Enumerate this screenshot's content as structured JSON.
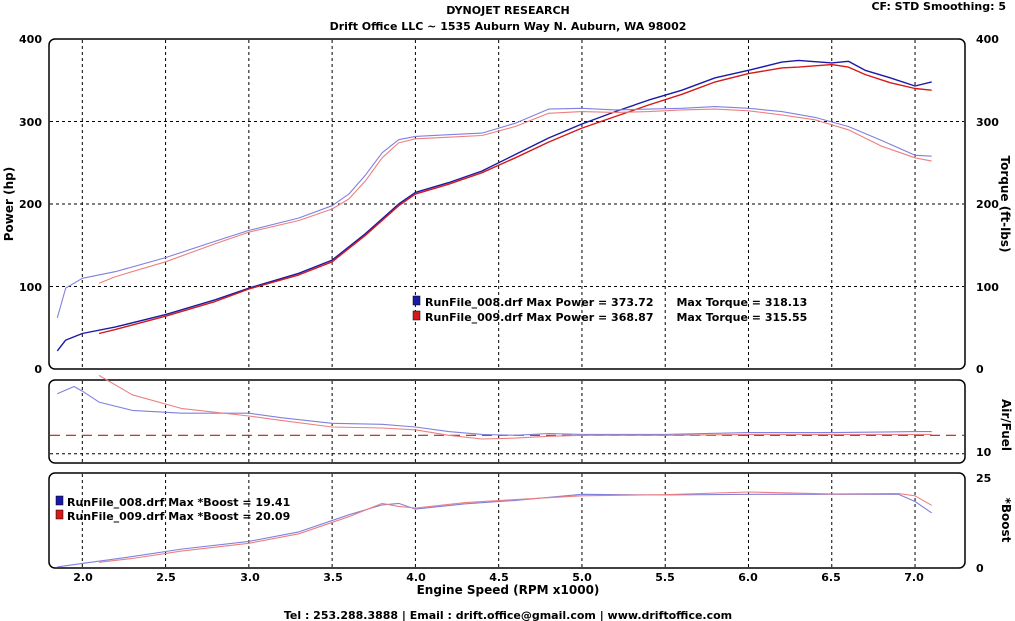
{
  "header": {
    "title": "DYNOJET RESEARCH",
    "subtitle": "Drift Office LLC ~ 1535 Auburn Way N. Auburn, WA 98002",
    "cf_text": "CF: STD  Smoothing: 5"
  },
  "footer": {
    "contact": "Tel : 253.288.3888 | Email : drift.office@gmail.com | www.driftoffice.com"
  },
  "colors": {
    "run008": "#1a1aa8",
    "run009": "#d41a1a",
    "run008_light": "#8080e0",
    "run009_light": "#ec8080"
  },
  "chart_data": [
    {
      "type": "line",
      "panel": "power-torque",
      "ylabel": "Power (hp)",
      "y2label": "Torque (ft-lbs)",
      "ylim": [
        0,
        400
      ],
      "y2lim": [
        0,
        400
      ],
      "xlim": [
        1.8,
        7.3
      ],
      "yticks": [
        "0",
        "100",
        "200",
        "300",
        "400"
      ],
      "y2ticks": [
        "0",
        "100",
        "200",
        "300",
        "400"
      ],
      "grid": true,
      "legend": [
        "RunFile_008.drf Max Power = 373.72      Max Torque = 318.13",
        "RunFile_009.drf Max Power = 368.87      Max Torque = 315.55"
      ],
      "series": [
        {
          "name": "RunFile_008.drf",
          "measure": "power",
          "x": [
            1.85,
            1.9,
            2.0,
            2.2,
            2.5,
            2.8,
            3.0,
            3.3,
            3.5,
            3.7,
            3.9,
            4.0,
            4.2,
            4.4,
            4.6,
            4.8,
            5.0,
            5.2,
            5.4,
            5.6,
            5.8,
            6.0,
            6.2,
            6.3,
            6.5,
            6.6,
            6.7,
            6.85,
            7.0,
            7.1
          ],
          "y": [
            22,
            35,
            43,
            51,
            66,
            84,
            98,
            116,
            132,
            164,
            200,
            214,
            226,
            240,
            260,
            280,
            297,
            312,
            326,
            338,
            353,
            362,
            372,
            374,
            371,
            373,
            362,
            353,
            343,
            348
          ]
        },
        {
          "name": "RunFile_009.drf",
          "measure": "power",
          "x": [
            2.1,
            2.2,
            2.5,
            2.8,
            3.0,
            3.3,
            3.5,
            3.7,
            3.9,
            4.0,
            4.2,
            4.4,
            4.6,
            4.8,
            5.0,
            5.2,
            5.4,
            5.6,
            5.8,
            6.0,
            6.2,
            6.3,
            6.5,
            6.6,
            6.7,
            6.85,
            7.0,
            7.1
          ],
          "y": [
            43,
            48,
            64,
            82,
            97,
            114,
            130,
            162,
            198,
            212,
            224,
            238,
            256,
            275,
            292,
            306,
            320,
            333,
            348,
            358,
            365,
            366,
            369,
            366,
            357,
            347,
            340,
            338
          ]
        },
        {
          "name": "RunFile_008.drf",
          "measure": "torque",
          "x": [
            1.85,
            1.9,
            2.0,
            2.2,
            2.5,
            2.8,
            3.0,
            3.3,
            3.5,
            3.6,
            3.7,
            3.8,
            3.9,
            4.0,
            4.2,
            4.4,
            4.6,
            4.8,
            5.0,
            5.2,
            5.4,
            5.6,
            5.8,
            6.0,
            6.2,
            6.4,
            6.6,
            6.8,
            7.0,
            7.1
          ],
          "y": [
            62,
            98,
            110,
            118,
            135,
            155,
            168,
            183,
            198,
            212,
            235,
            262,
            278,
            282,
            284,
            286,
            298,
            315,
            316,
            314,
            315,
            316,
            318,
            316,
            312,
            305,
            294,
            277,
            259,
            258
          ]
        },
        {
          "name": "RunFile_009.drf",
          "measure": "torque",
          "x": [
            2.1,
            2.2,
            2.5,
            2.8,
            3.0,
            3.3,
            3.5,
            3.6,
            3.7,
            3.8,
            3.9,
            4.0,
            4.2,
            4.4,
            4.6,
            4.8,
            5.0,
            5.2,
            5.4,
            5.6,
            5.8,
            6.0,
            6.2,
            6.4,
            6.6,
            6.8,
            7.0,
            7.1
          ],
          "y": [
            104,
            112,
            130,
            152,
            166,
            180,
            194,
            206,
            228,
            256,
            274,
            279,
            281,
            283,
            294,
            310,
            312,
            311,
            312,
            314,
            315,
            313,
            308,
            302,
            290,
            270,
            256,
            252
          ]
        }
      ]
    },
    {
      "type": "line",
      "panel": "air-fuel",
      "ylabel": "Air/Fuel",
      "xlim": [
        1.8,
        7.3
      ],
      "ylim": [
        9,
        18
      ],
      "y2ticks": [
        "10"
      ],
      "reference_line": 12,
      "grid": true,
      "series": [
        {
          "name": "RunFile_008.drf",
          "x": [
            1.85,
            1.9,
            1.95,
            2.0,
            2.1,
            2.3,
            2.6,
            3.0,
            3.2,
            3.5,
            3.8,
            4.0,
            4.2,
            4.4,
            4.6,
            4.8,
            5.0,
            5.5,
            6.0,
            6.5,
            7.0,
            7.1
          ],
          "y": [
            16.5,
            16.9,
            17.3,
            16.8,
            15.6,
            14.7,
            14.4,
            14.4,
            13.9,
            13.3,
            13.2,
            12.9,
            12.4,
            12.1,
            12.0,
            12.2,
            12.1,
            12.1,
            12.3,
            12.3,
            12.4,
            12.4
          ]
        },
        {
          "name": "RunFile_009.drf",
          "x": [
            2.1,
            2.3,
            2.6,
            3.0,
            3.2,
            3.5,
            3.8,
            4.0,
            4.2,
            4.4,
            4.6,
            4.8,
            5.0,
            5.5,
            6.0,
            6.5,
            7.0,
            7.1
          ],
          "y": [
            18.5,
            16.4,
            14.9,
            14.1,
            13.6,
            12.9,
            12.8,
            12.6,
            12.0,
            11.6,
            11.7,
            11.9,
            12.0,
            12.0,
            12.1,
            12.1,
            12.1,
            12.1
          ]
        }
      ]
    },
    {
      "type": "line",
      "panel": "boost",
      "ylabel": "*Boost",
      "xlabel": "Engine Speed (RPM x1000)",
      "xlim": [
        1.8,
        7.3
      ],
      "ylim": [
        0,
        25
      ],
      "xticks": [
        "2.0",
        "2.5",
        "3.0",
        "3.5",
        "4.0",
        "4.5",
        "5.0",
        "5.5",
        "6.0",
        "6.5",
        "7.0"
      ],
      "y2ticks": [
        "0",
        "25"
      ],
      "grid": true,
      "legend": [
        "RunFile_008.drf Max *Boost = 19.41",
        "RunFile_009.drf Max *Boost = 20.09"
      ],
      "series": [
        {
          "name": "RunFile_008.drf",
          "x": [
            1.85,
            2.0,
            2.3,
            2.6,
            3.0,
            3.3,
            3.6,
            3.8,
            3.9,
            4.0,
            4.3,
            4.6,
            5.0,
            5.5,
            6.0,
            6.5,
            6.9,
            7.0,
            7.1
          ],
          "y": [
            0.3,
            1.2,
            3.0,
            5.0,
            7.0,
            9.5,
            14.0,
            16.6,
            17.0,
            15.5,
            16.9,
            17.8,
            19.4,
            19.2,
            19.4,
            19.4,
            19.4,
            17.5,
            14.5
          ]
        },
        {
          "name": "RunFile_009.drf",
          "x": [
            2.1,
            2.3,
            2.6,
            3.0,
            3.3,
            3.6,
            3.8,
            3.9,
            4.0,
            4.3,
            4.6,
            5.0,
            5.5,
            6.0,
            6.5,
            6.9,
            7.0,
            7.1
          ],
          "y": [
            1.5,
            2.5,
            4.5,
            6.5,
            9.0,
            13.5,
            17.0,
            16.2,
            15.8,
            17.2,
            18.0,
            19.0,
            19.3,
            20.0,
            19.5,
            19.6,
            19.0,
            16.5
          ]
        }
      ]
    }
  ]
}
